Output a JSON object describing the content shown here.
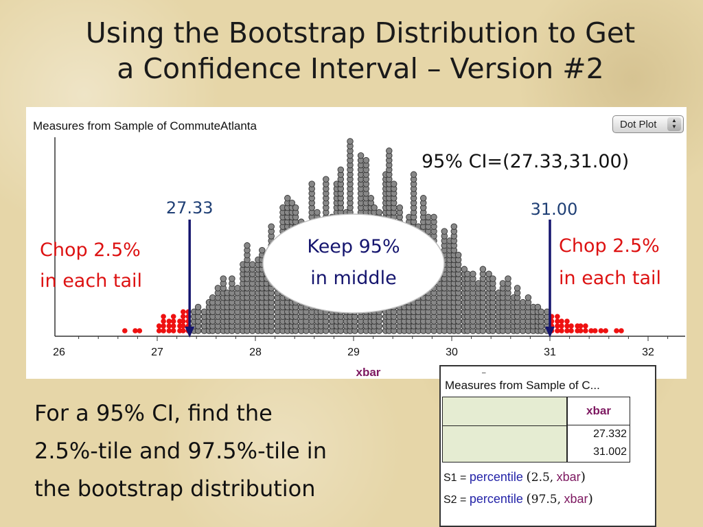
{
  "slide": {
    "title_line1": "Using the Bootstrap Distribution to Get",
    "title_line2": "a Confidence Interval – Version #2",
    "caption_lines": [
      "For a 95% CI, find the",
      "2.5%-tile and 97.5%-tile in",
      "the bootstrap distribution"
    ]
  },
  "graph": {
    "title": "Measures from Sample of CommuteAtlanta",
    "plot_type_button": "Dot Plot"
  },
  "annotations": {
    "ci_text": "95% CI=(27.33,31.00)",
    "left_cut_label": "27.33",
    "right_cut_label": "31.00",
    "left_tail_line1": "Chop 2.5%",
    "left_tail_line2": "in each tail",
    "right_tail_line1": "Chop 2.5%",
    "right_tail_line2": "in each tail",
    "middle_line1": "Keep 95%",
    "middle_line2": "in middle"
  },
  "chart_data": {
    "type": "scatter",
    "subtype": "dot plot of bootstrap distribution",
    "xlabel": "xbar",
    "ylabel": "",
    "xlim": [
      26,
      32.35
    ],
    "x_ticks": [
      "26",
      "27",
      "28",
      "29",
      "30",
      "31",
      "32"
    ],
    "cutoffs": [
      27.33,
      31.0
    ],
    "center": 29.1,
    "approx_dot_count": 1000,
    "series": [
      {
        "name": "",
        "color": "#888888",
        "region": "middle 95%"
      },
      {
        "name": "",
        "color": "#ee1111",
        "region": "lower and upper 2.5% tails"
      }
    ],
    "colors": {
      "tail": "#ee1111",
      "middle_dot": "#888888",
      "arrow": "#15156e",
      "xlabel": "#7d1860",
      "ci_text": "#111111",
      "tail_text": "#dd1111",
      "cut_label": "#1f3f75"
    },
    "grid": false
  },
  "summary": {
    "title": "Measures from Sample of C...",
    "top_stub": "–",
    "column_header": "xbar",
    "values": [
      "27.332",
      "31.002"
    ],
    "formulas": [
      {
        "name": "S1",
        "eq": "=",
        "fn": "percentile",
        "open": "(",
        "arg": "2.5,",
        "attr": "xbar",
        "close": ")"
      },
      {
        "name": "S2",
        "eq": "=",
        "fn": "percentile",
        "open": "(",
        "arg": "97.5,",
        "attr": "xbar",
        "close": ")"
      }
    ]
  }
}
